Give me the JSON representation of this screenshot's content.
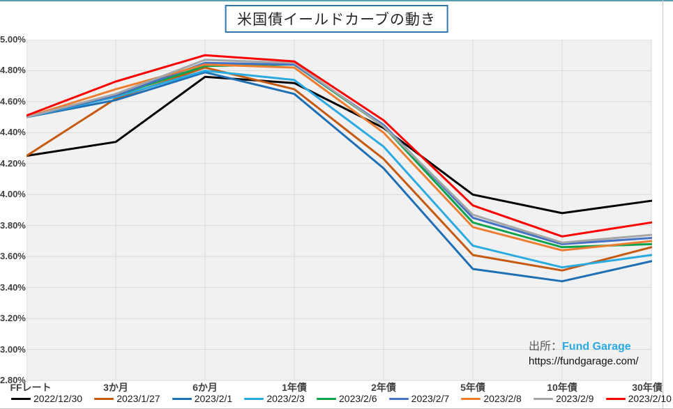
{
  "page": {
    "title": "米国債イールドカーブの動き",
    "attribution": {
      "label": "出所：",
      "brand": "Fund Garage",
      "url": "https://fundgarage.com/"
    },
    "colors": {
      "title_border": "#2E75B6",
      "brand": "#29ABE2",
      "top_border": "#57A0B4",
      "plot_bg": "#F1F1F1",
      "grid": "#D9D9D9"
    }
  },
  "chart_data": {
    "type": "line",
    "title": "米国債イールドカーブの動き",
    "categories": [
      "FFレート",
      "3か月",
      "6か月",
      "1年債",
      "2年債",
      "5年債",
      "10年債",
      "30年債"
    ],
    "xlabel": "",
    "ylabel": "",
    "ylim": [
      2.8,
      5.0
    ],
    "y_step": 0.2,
    "y_ticks": [
      "5.00%",
      "4.80%",
      "4.60%",
      "4.40%",
      "4.20%",
      "4.00%",
      "3.80%",
      "3.60%",
      "3.40%",
      "3.20%",
      "3.00%",
      "2.80%"
    ],
    "grid": true,
    "legend_position": "bottom",
    "series": [
      {
        "name": "2022/12/30",
        "color": "#000000",
        "values": [
          4.25,
          4.34,
          4.76,
          4.72,
          4.43,
          4.0,
          3.88,
          3.96
        ]
      },
      {
        "name": "2023/1/27",
        "color": "#C55A11",
        "values": [
          4.25,
          4.62,
          4.82,
          4.68,
          4.23,
          3.61,
          3.51,
          3.66
        ]
      },
      {
        "name": "2023/2/1",
        "color": "#1F6FB5",
        "values": [
          4.5,
          4.61,
          4.79,
          4.65,
          4.17,
          3.52,
          3.44,
          3.57
        ]
      },
      {
        "name": "2023/2/3",
        "color": "#29ABE2",
        "values": [
          4.5,
          4.63,
          4.8,
          4.74,
          4.31,
          3.67,
          3.53,
          3.61
        ]
      },
      {
        "name": "2023/2/6",
        "color": "#0DA24C",
        "values": [
          4.5,
          4.64,
          4.83,
          4.84,
          4.44,
          3.82,
          3.66,
          3.68
        ]
      },
      {
        "name": "2023/2/7",
        "color": "#4472C4",
        "values": [
          4.5,
          4.64,
          4.85,
          4.84,
          4.45,
          3.85,
          3.68,
          3.72
        ]
      },
      {
        "name": "2023/2/8",
        "color": "#ED7D31",
        "values": [
          4.5,
          4.68,
          4.84,
          4.82,
          4.4,
          3.79,
          3.64,
          3.7
        ]
      },
      {
        "name": "2023/2/9",
        "color": "#A6A6A6",
        "values": [
          4.5,
          4.65,
          4.87,
          4.85,
          4.44,
          3.87,
          3.69,
          3.74
        ]
      },
      {
        "name": "2023/2/10",
        "color": "#FF0000",
        "values": [
          4.51,
          4.73,
          4.9,
          4.86,
          4.48,
          3.93,
          3.73,
          3.82
        ]
      }
    ]
  }
}
